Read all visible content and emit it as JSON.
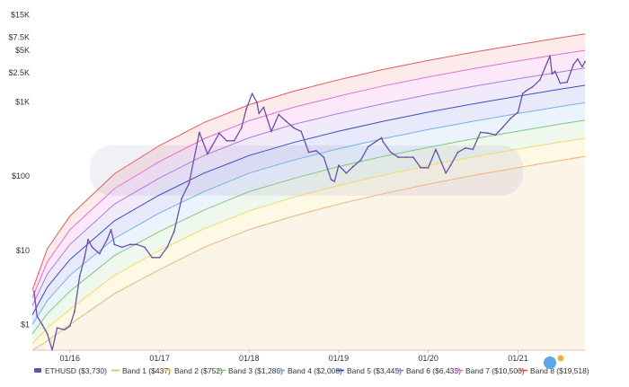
{
  "chart_data": {
    "type": "line",
    "y_scale": "log",
    "ylim": [
      0.45,
      18000
    ],
    "xlim": [
      "2015-08-01",
      "2021-10-01"
    ],
    "grid": false,
    "legend_position": "bottom",
    "x_ticks": [
      {
        "label": "01/16",
        "date": "2016-01-01"
      },
      {
        "label": "01/17",
        "date": "2017-01-01"
      },
      {
        "label": "01/18",
        "date": "2018-01-01"
      },
      {
        "label": "01/19",
        "date": "2019-01-01"
      },
      {
        "label": "01/20",
        "date": "2020-01-01"
      },
      {
        "label": "01/21",
        "date": "2021-01-01"
      }
    ],
    "y_ticks": [
      {
        "label": "$15K",
        "value": 15000
      },
      {
        "label": "$7.5K",
        "value": 7500
      },
      {
        "label": "$5K",
        "value": 5000
      },
      {
        "label": "$2.5K",
        "value": 2500
      },
      {
        "label": "$1K",
        "value": 1000
      },
      {
        "label": "$100",
        "value": 100
      },
      {
        "label": "$10",
        "value": 10
      },
      {
        "label": "$1",
        "value": 1
      }
    ],
    "price_series": {
      "name": "ETHUSD ($3,730)",
      "color": "#6b4fa8",
      "points": [
        [
          "2015-08-08",
          2.8
        ],
        [
          "2015-08-20",
          1.3
        ],
        [
          "2015-09-10",
          1.0
        ],
        [
          "2015-10-01",
          0.75
        ],
        [
          "2015-10-21",
          0.45
        ],
        [
          "2015-11-10",
          0.9
        ],
        [
          "2015-12-10",
          0.85
        ],
        [
          "2016-01-01",
          0.95
        ],
        [
          "2016-01-20",
          1.5
        ],
        [
          "2016-02-10",
          4.5
        ],
        [
          "2016-03-01",
          8
        ],
        [
          "2016-03-15",
          14
        ],
        [
          "2016-04-01",
          11
        ],
        [
          "2016-05-01",
          9
        ],
        [
          "2016-06-01",
          14
        ],
        [
          "2016-06-17",
          19
        ],
        [
          "2016-07-01",
          12
        ],
        [
          "2016-08-01",
          11
        ],
        [
          "2016-09-01",
          12
        ],
        [
          "2016-10-01",
          12
        ],
        [
          "2016-11-01",
          11
        ],
        [
          "2016-12-01",
          8
        ],
        [
          "2017-01-01",
          8
        ],
        [
          "2017-02-01",
          11
        ],
        [
          "2017-03-01",
          18
        ],
        [
          "2017-04-01",
          50
        ],
        [
          "2017-05-01",
          80
        ],
        [
          "2017-06-12",
          390
        ],
        [
          "2017-07-15",
          200
        ],
        [
          "2017-08-01",
          250
        ],
        [
          "2017-09-01",
          380
        ],
        [
          "2017-10-01",
          300
        ],
        [
          "2017-11-01",
          300
        ],
        [
          "2017-12-01",
          450
        ],
        [
          "2017-12-20",
          800
        ],
        [
          "2018-01-13",
          1300
        ],
        [
          "2018-02-01",
          1000
        ],
        [
          "2018-02-10",
          700
        ],
        [
          "2018-03-01",
          850
        ],
        [
          "2018-04-01",
          400
        ],
        [
          "2018-05-01",
          680
        ],
        [
          "2018-06-01",
          550
        ],
        [
          "2018-07-01",
          450
        ],
        [
          "2018-08-01",
          400
        ],
        [
          "2018-09-01",
          210
        ],
        [
          "2018-10-01",
          220
        ],
        [
          "2018-11-01",
          180
        ],
        [
          "2018-12-01",
          90
        ],
        [
          "2018-12-15",
          85
        ],
        [
          "2019-01-01",
          140
        ],
        [
          "2019-02-01",
          110
        ],
        [
          "2019-03-01",
          135
        ],
        [
          "2019-04-01",
          165
        ],
        [
          "2019-05-01",
          250
        ],
        [
          "2019-06-25",
          330
        ],
        [
          "2019-07-01",
          290
        ],
        [
          "2019-08-01",
          210
        ],
        [
          "2019-09-01",
          180
        ],
        [
          "2019-10-01",
          180
        ],
        [
          "2019-11-01",
          180
        ],
        [
          "2019-12-01",
          130
        ],
        [
          "2020-01-01",
          130
        ],
        [
          "2020-02-01",
          230
        ],
        [
          "2020-03-13",
          110
        ],
        [
          "2020-04-01",
          140
        ],
        [
          "2020-05-01",
          210
        ],
        [
          "2020-06-01",
          240
        ],
        [
          "2020-07-01",
          230
        ],
        [
          "2020-08-01",
          390
        ],
        [
          "2020-09-01",
          380
        ],
        [
          "2020-10-01",
          360
        ],
        [
          "2020-11-01",
          460
        ],
        [
          "2020-12-01",
          600
        ],
        [
          "2021-01-01",
          730
        ],
        [
          "2021-01-20",
          1300
        ],
        [
          "2021-02-01",
          1400
        ],
        [
          "2021-03-01",
          1600
        ],
        [
          "2021-04-01",
          2000
        ],
        [
          "2021-05-11",
          4200
        ],
        [
          "2021-05-20",
          2400
        ],
        [
          "2021-06-01",
          2600
        ],
        [
          "2021-06-22",
          1800
        ],
        [
          "2021-07-20",
          1850
        ],
        [
          "2021-08-15",
          3200
        ],
        [
          "2021-09-01",
          3800
        ],
        [
          "2021-09-20",
          3000
        ],
        [
          "2021-10-01",
          3500
        ]
      ]
    },
    "bands": [
      {
        "name": "Band 1 ($437)",
        "color": "#f0b27a",
        "fill": "#fdf3e6",
        "current": 437
      },
      {
        "name": "Band 2 ($752)",
        "color": "#f5d76e",
        "fill": "#fdf8e2",
        "current": 752
      },
      {
        "name": "Band 3 ($1,286)",
        "color": "#7fc97f",
        "fill": "#ecf7ea",
        "current": 1286
      },
      {
        "name": "Band 4 ($2,008)",
        "color": "#74b3e8",
        "fill": "#e9f2fc",
        "current": 2008
      },
      {
        "name": "Band 5 ($3,445)",
        "color": "#3a4fc4",
        "fill": "#e6e7f9",
        "current": 3445
      },
      {
        "name": "Band 6 ($6,433)",
        "color": "#a97ee0",
        "fill": "#f0e8fb",
        "current": 6433
      },
      {
        "name": "Band 7 ($10,500)",
        "color": "#e46fd8",
        "fill": "#fbe5f7",
        "current": 10500
      },
      {
        "name": "Band 8 ($19,518)",
        "color": "#e45c5c",
        "fill": "#fde8e8",
        "current": 19518
      }
    ],
    "band_upper_values": [
      {
        "date": "2015-08-01",
        "values": [
          0.45,
          0.55,
          0.75,
          1.0,
          1.35,
          1.8,
          2.3,
          2.9
        ]
      },
      {
        "date": "2015-10-01",
        "values": [
          0.6,
          0.9,
          1.4,
          2.1,
          3.2,
          4.8,
          7.0,
          10.5
        ]
      },
      {
        "date": "2016-01-01",
        "values": [
          1.0,
          1.6,
          2.8,
          4.6,
          7.5,
          12,
          19,
          29
        ]
      },
      {
        "date": "2016-07-01",
        "values": [
          2.6,
          4.6,
          8.5,
          14.5,
          25,
          42,
          68,
          108
        ]
      },
      {
        "date": "2017-01-01",
        "values": [
          5.5,
          10,
          18,
          32,
          56,
          95,
          158,
          260
        ]
      },
      {
        "date": "2017-07-01",
        "values": [
          11,
          19.5,
          35,
          62,
          110,
          190,
          320,
          530
        ]
      },
      {
        "date": "2018-01-01",
        "values": [
          19,
          34,
          62,
          110,
          190,
          330,
          560,
          920
        ]
      },
      {
        "date": "2018-07-01",
        "values": [
          29,
          52,
          93,
          165,
          285,
          500,
          850,
          1400
        ]
      },
      {
        "date": "2019-01-01",
        "values": [
          42,
          75,
          135,
          235,
          405,
          700,
          1200,
          2000
        ]
      },
      {
        "date": "2019-07-01",
        "values": [
          58,
          103,
          185,
          320,
          550,
          950,
          1650,
          2750
        ]
      },
      {
        "date": "2020-01-01",
        "values": [
          78,
          140,
          245,
          425,
          730,
          1260,
          2180,
          3650
        ]
      },
      {
        "date": "2020-07-01",
        "values": [
          102,
          182,
          318,
          550,
          945,
          1620,
          2820,
          4700
        ]
      },
      {
        "date": "2021-01-01",
        "values": [
          130,
          232,
          405,
          700,
          1200,
          2060,
          3580,
          5950
        ]
      },
      {
        "date": "2021-07-01",
        "values": [
          165,
          292,
          510,
          880,
          1510,
          2580,
          4480,
          7450
        ]
      },
      {
        "date": "2021-10-01",
        "values": [
          185,
          325,
          570,
          980,
          1680,
          2870,
          4980,
          8280
        ]
      }
    ]
  }
}
